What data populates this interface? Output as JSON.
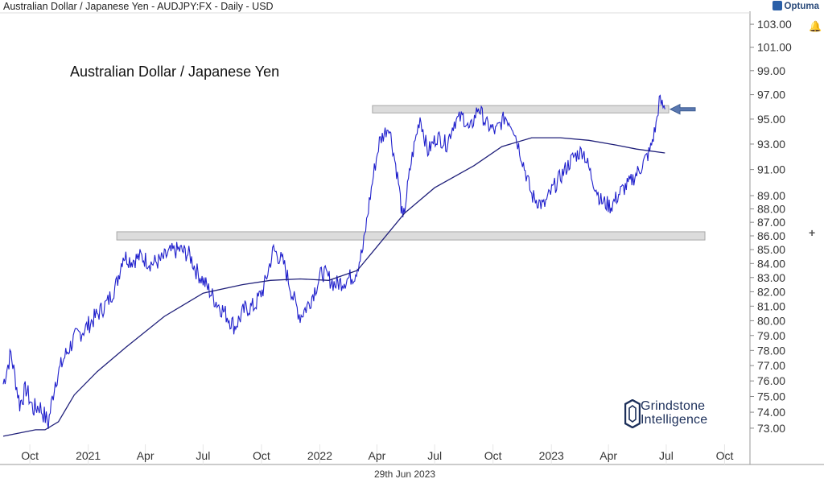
{
  "header": {
    "title": "Australian Dollar / Japanese Yen - AUDJPY:FX - Daily - USD",
    "brand": "Optuma"
  },
  "chart_title": "Australian Dollar / Japanese Yen",
  "date_label": "29th Jun 2023",
  "logo": {
    "line1": "Grindstone",
    "line2": "Intelligence"
  },
  "colors": {
    "price": "#2020cc",
    "ma": "#20207a",
    "zone": "#dcdcdc",
    "arrow": "#5a78b0"
  },
  "icons": [
    "optuma-logo-icon",
    "bell-icon",
    "plus-icon",
    "grindstone-logo-icon",
    "arrow-left-icon"
  ],
  "chart_data": {
    "type": "line",
    "title": "Australian Dollar / Japanese Yen",
    "xlabel": "",
    "ylabel": "",
    "y_scale": "log",
    "ylim": [
      72,
      104
    ],
    "xlim": [
      "2020-08-20",
      "2023-11-10"
    ],
    "x_ticks": [
      "Oct",
      "2021",
      "Apr",
      "Jul",
      "Oct",
      "2022",
      "Apr",
      "Jul",
      "Oct",
      "2023",
      "Apr",
      "Jul",
      "Oct"
    ],
    "y_ticks": [
      "73.00",
      "74.00",
      "75.00",
      "76.00",
      "77.00",
      "78.00",
      "79.00",
      "80.00",
      "81.00",
      "82.00",
      "83.00",
      "84.00",
      "85.00",
      "86.00",
      "87.00",
      "88.00",
      "89.00",
      "91.00",
      "93.00",
      "95.00",
      "97.00",
      "99.00",
      "101.00",
      "103.00"
    ],
    "series": [
      {
        "values_note": "daily close (approx.)",
        "x": [
          "2020-08-20",
          "2020-09-01",
          "2020-09-15",
          "2020-09-25",
          "2020-10-06",
          "2020-10-16",
          "2020-10-30",
          "2020-11-10",
          "2020-11-25",
          "2020-12-10",
          "2020-12-28",
          "2021-01-15",
          "2021-02-01",
          "2021-02-15",
          "2021-02-25",
          "2021-03-10",
          "2021-03-25",
          "2021-04-10",
          "2021-04-25",
          "2021-05-10",
          "2021-05-25",
          "2021-06-10",
          "2021-06-20",
          "2021-07-01",
          "2021-07-20",
          "2021-08-05",
          "2021-08-20",
          "2021-09-05",
          "2021-09-20",
          "2021-10-05",
          "2021-10-20",
          "2021-11-05",
          "2021-11-20",
          "2021-12-01",
          "2021-12-15",
          "2022-01-05",
          "2022-01-25",
          "2022-02-10",
          "2022-02-25",
          "2022-03-10",
          "2022-03-20",
          "2022-03-28",
          "2022-04-05",
          "2022-04-20",
          "2022-05-05",
          "2022-05-12",
          "2022-05-25",
          "2022-06-08",
          "2022-06-20",
          "2022-07-05",
          "2022-07-20",
          "2022-08-01",
          "2022-08-15",
          "2022-08-25",
          "2022-09-08",
          "2022-09-20",
          "2022-10-05",
          "2022-10-20",
          "2022-11-01",
          "2022-11-15",
          "2022-12-01",
          "2022-12-20",
          "2023-01-03",
          "2023-01-20",
          "2023-02-05",
          "2023-02-20",
          "2023-03-05",
          "2023-03-20",
          "2023-04-05",
          "2023-04-20",
          "2023-05-05",
          "2023-05-20",
          "2023-06-05",
          "2023-06-15",
          "2023-06-20",
          "2023-06-29"
        ],
        "values": [
          75.8,
          77.8,
          74.5,
          75.5,
          74.2,
          74.4,
          73.3,
          76.0,
          77.6,
          78.8,
          79.5,
          80.4,
          81.3,
          82.6,
          84.6,
          84.2,
          84.5,
          84.0,
          84.2,
          84.8,
          85.0,
          84.6,
          83.5,
          82.8,
          81.4,
          80.5,
          79.6,
          80.8,
          81.0,
          82.3,
          85.0,
          84.0,
          81.6,
          80.3,
          81.2,
          83.4,
          82.5,
          82.8,
          83.2,
          85.0,
          88.5,
          91.0,
          93.2,
          94.5,
          90.0,
          87.0,
          91.6,
          95.2,
          92.4,
          93.6,
          93.0,
          94.8,
          95.2,
          94.0,
          96.0,
          94.6,
          94.0,
          95.2,
          94.5,
          92.0,
          89.0,
          88.2,
          89.5,
          90.8,
          92.0,
          92.5,
          90.5,
          88.6,
          88.2,
          89.3,
          90.0,
          91.0,
          92.4,
          94.5,
          96.5,
          95.8
        ]
      },
      {
        "values_note": "long-term moving average (approx.)",
        "x": [
          "2020-08-20",
          "2020-10-10",
          "2020-10-25",
          "2020-11-15",
          "2020-12-10",
          "2021-01-15",
          "2021-03-01",
          "2021-05-01",
          "2021-07-01",
          "2021-09-01",
          "2021-10-15",
          "2021-12-01",
          "2022-01-15",
          "2022-03-01",
          "2022-04-01",
          "2022-05-15",
          "2022-07-01",
          "2022-09-01",
          "2022-10-15",
          "2022-12-01",
          "2023-01-15",
          "2023-03-01",
          "2023-04-15",
          "2023-05-15",
          "2023-06-29"
        ],
        "values": [
          72.5,
          72.9,
          72.9,
          73.4,
          75.1,
          76.6,
          78.2,
          80.3,
          81.9,
          82.5,
          82.8,
          82.9,
          82.8,
          83.5,
          85.2,
          87.7,
          89.6,
          91.3,
          92.8,
          93.5,
          93.5,
          93.3,
          92.9,
          92.6,
          92.3
        ]
      }
    ],
    "zones": [
      {
        "from": 85.7,
        "to": 86.3,
        "start": "2021-02-15",
        "end": "2023-08-31"
      },
      {
        "from": 95.5,
        "to": 96.1,
        "start": "2022-03-25",
        "end": "2023-07-05"
      }
    ]
  }
}
